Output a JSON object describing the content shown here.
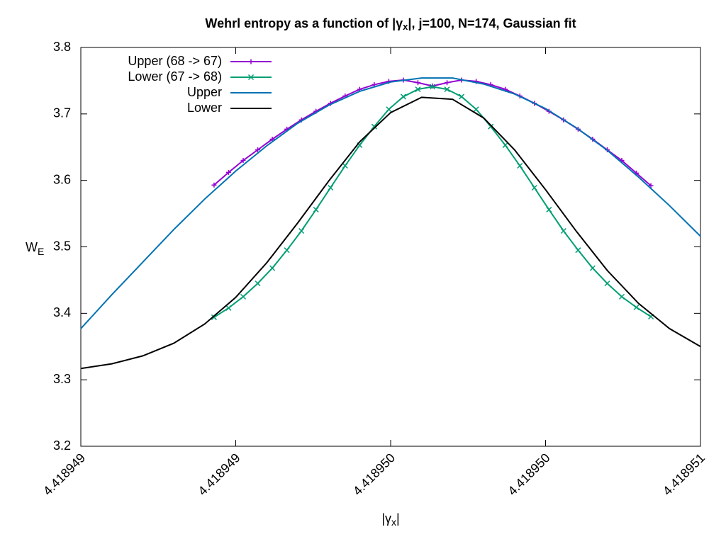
{
  "chart_data": {
    "type": "line",
    "title": {
      "text": "Wehrl entropy as a function of |γ",
      "subscript": "x",
      "suffix": "|,  j=100, N=174, Gaussian fit"
    },
    "x_label": {
      "text": "|γ",
      "subscript": "x",
      "suffix": "|"
    },
    "y_label": {
      "text": "W",
      "subscript": "E"
    },
    "xlim": [
      4.418949,
      4.418951
    ],
    "ylim": [
      3.2,
      3.8
    ],
    "xticks": [
      {
        "value": 4.418949,
        "label": "4.418949"
      },
      {
        "value": 4.4189495,
        "label": "4.418949"
      },
      {
        "value": 4.41895,
        "label": "4.418950"
      },
      {
        "value": 4.4189505,
        "label": "4.418950"
      },
      {
        "value": 4.418951,
        "label": "4.418951"
      }
    ],
    "yticks": [
      {
        "value": 3.2,
        "label": "3.2"
      },
      {
        "value": 3.3,
        "label": "3.3"
      },
      {
        "value": 3.4,
        "label": "3.4"
      },
      {
        "value": 3.5,
        "label": "3.5"
      },
      {
        "value": 3.6,
        "label": "3.6"
      },
      {
        "value": 3.7,
        "label": "3.7"
      },
      {
        "value": 3.8,
        "label": "3.8"
      }
    ],
    "legend": "top-left",
    "series": [
      {
        "name": "Upper (68 -> 67)",
        "color": "#9400d3",
        "marker": "plus",
        "x": [
          4.41894943,
          4.418949477,
          4.418949524,
          4.418949571,
          4.418949618,
          4.418949665,
          4.418949712,
          4.418949759,
          4.418949806,
          4.418949853,
          4.4189499,
          4.418949947,
          4.418949994,
          4.418950041,
          4.418950088,
          4.418950135,
          4.418950182,
          4.418950229,
          4.418950276,
          4.418950323,
          4.41895037,
          4.418950417,
          4.418950464,
          4.418950511,
          4.418950558,
          4.418950605,
          4.418950652,
          4.418950699,
          4.418950746,
          4.418950793,
          4.41895084
        ],
        "values": [
          3.593,
          3.612,
          3.63,
          3.646,
          3.662,
          3.677,
          3.691,
          3.704,
          3.716,
          3.727,
          3.737,
          3.744,
          3.749,
          3.751,
          3.747,
          3.742,
          3.747,
          3.751,
          3.749,
          3.744,
          3.737,
          3.727,
          3.716,
          3.704,
          3.691,
          3.677,
          3.662,
          3.646,
          3.63,
          3.611,
          3.592
        ]
      },
      {
        "name": "Lower (67 -> 68)",
        "color": "#009e73",
        "marker": "cross",
        "x": [
          4.41894943,
          4.418949477,
          4.418949524,
          4.418949571,
          4.418949618,
          4.418949665,
          4.418949712,
          4.418949759,
          4.418949806,
          4.418949853,
          4.4189499,
          4.418949947,
          4.418949994,
          4.418950041,
          4.418950088,
          4.418950135,
          4.418950182,
          4.418950229,
          4.418950276,
          4.418950323,
          4.41895037,
          4.418950417,
          4.418950464,
          4.418950511,
          4.418950558,
          4.418950605,
          4.418950652,
          4.418950699,
          4.418950746,
          4.418950793,
          4.41895084
        ],
        "values": [
          3.394,
          3.408,
          3.425,
          3.445,
          3.468,
          3.495,
          3.524,
          3.556,
          3.589,
          3.622,
          3.653,
          3.681,
          3.707,
          3.726,
          3.737,
          3.741,
          3.737,
          3.726,
          3.707,
          3.681,
          3.653,
          3.622,
          3.589,
          3.556,
          3.524,
          3.495,
          3.468,
          3.445,
          3.425,
          3.409,
          3.395
        ]
      },
      {
        "name": "Upper",
        "color": "#0072b2",
        "marker": "none",
        "x": [
          4.418949,
          4.4189491,
          4.4189492,
          4.4189493,
          4.4189494,
          4.4189495,
          4.4189496,
          4.4189497,
          4.4189498,
          4.4189499,
          4.41895,
          4.4189501,
          4.4189502,
          4.4189503,
          4.4189504,
          4.4189505,
          4.4189506,
          4.4189507,
          4.4189508,
          4.4189509,
          4.418951
        ],
        "values": [
          3.377,
          3.428,
          3.477,
          3.526,
          3.572,
          3.614,
          3.652,
          3.686,
          3.713,
          3.734,
          3.748,
          3.754,
          3.754,
          3.745,
          3.73,
          3.708,
          3.679,
          3.645,
          3.605,
          3.562,
          3.516
        ]
      },
      {
        "name": "Lower",
        "color": "#000000",
        "marker": "none",
        "x": [
          4.418949,
          4.4189491,
          4.4189492,
          4.4189493,
          4.4189494,
          4.4189495,
          4.4189496,
          4.4189497,
          4.4189498,
          4.4189499,
          4.41895,
          4.4189501,
          4.4189502,
          4.4189503,
          4.4189504,
          4.4189505,
          4.4189506,
          4.4189507,
          4.4189508,
          4.4189509,
          4.418951
        ],
        "values": [
          3.317,
          3.324,
          3.336,
          3.355,
          3.384,
          3.424,
          3.476,
          3.536,
          3.599,
          3.658,
          3.702,
          3.725,
          3.722,
          3.694,
          3.646,
          3.586,
          3.523,
          3.464,
          3.415,
          3.377,
          3.35
        ]
      }
    ]
  }
}
